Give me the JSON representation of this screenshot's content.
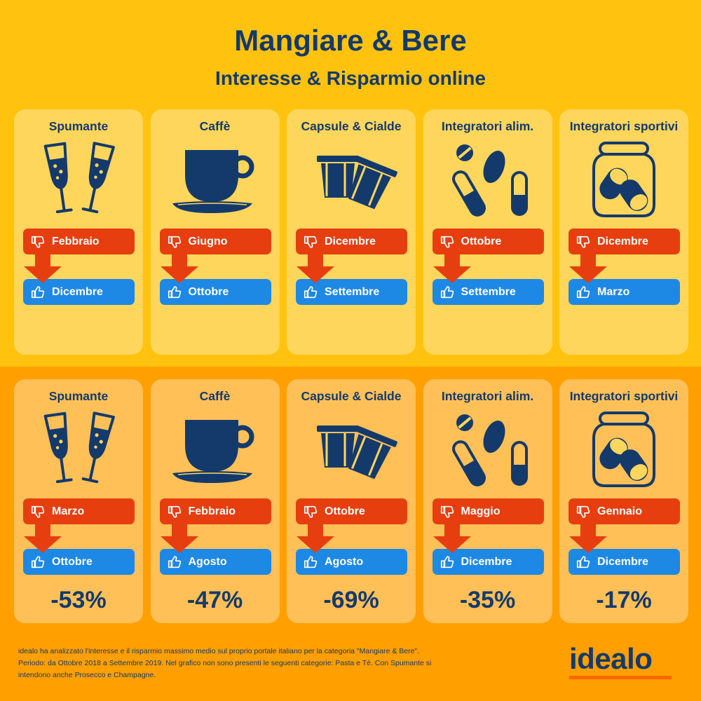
{
  "header": {
    "title": "Mangiare & Bere",
    "subtitle": "Interesse & Risparmio online"
  },
  "interest": [
    {
      "category": "Spumante",
      "icon": "champagne-glasses-icon",
      "low": "Febbraio",
      "high": "Dicembre"
    },
    {
      "category": "Caffè",
      "icon": "coffee-cup-icon",
      "low": "Giugno",
      "high": "Ottobre"
    },
    {
      "category": "Capsule & Cialde",
      "icon": "coffee-capsules-icon",
      "low": "Dicembre",
      "high": "Settembre"
    },
    {
      "category": "Integratori alim.",
      "icon": "pills-icon",
      "low": "Ottobre",
      "high": "Settembre"
    },
    {
      "category": "Integratori sportivi",
      "icon": "supplement-jar-icon",
      "low": "Dicembre",
      "high": "Marzo"
    }
  ],
  "savings": [
    {
      "category": "Spumante",
      "icon": "champagne-glasses-icon",
      "low": "Marzo",
      "high": "Ottobre",
      "saving": "-53%"
    },
    {
      "category": "Caffè",
      "icon": "coffee-cup-icon",
      "low": "Febbraio",
      "high": "Agosto",
      "saving": "-47%"
    },
    {
      "category": "Capsule & Cialde",
      "icon": "coffee-capsules-icon",
      "low": "Ottobre",
      "high": "Agosto",
      "saving": "-69%"
    },
    {
      "category": "Integratori alim.",
      "icon": "pills-icon",
      "low": "Maggio",
      "high": "Dicembre",
      "saving": "-35%"
    },
    {
      "category": "Integratori sportivi",
      "icon": "supplement-jar-icon",
      "low": "Gennaio",
      "high": "Dicembre",
      "saving": "-17%"
    }
  ],
  "footnote": {
    "line1": "idealo ha analizzato l'interesse e il risparmio massimo medio sul proprio portale italiano per la categoria \"Mangiare & Bere\".",
    "line2": "Periodo: da Ottobre 2018 a Settembre 2019. Nel grafico non sono presenti le seguenti categorie: Pasta e Tè. Con Spumante si",
    "line3": "intendono anche Prosecco e Champagne."
  },
  "logo": {
    "text": "idealo"
  },
  "colors": {
    "navy": "#143A6B",
    "top_background": "#FFC20E",
    "bottom_background": "#FF9F00",
    "thumb_down_red": "#E63E0F",
    "thumb_up_blue": "#1E88E5",
    "logo_orange": "#FF6600"
  }
}
